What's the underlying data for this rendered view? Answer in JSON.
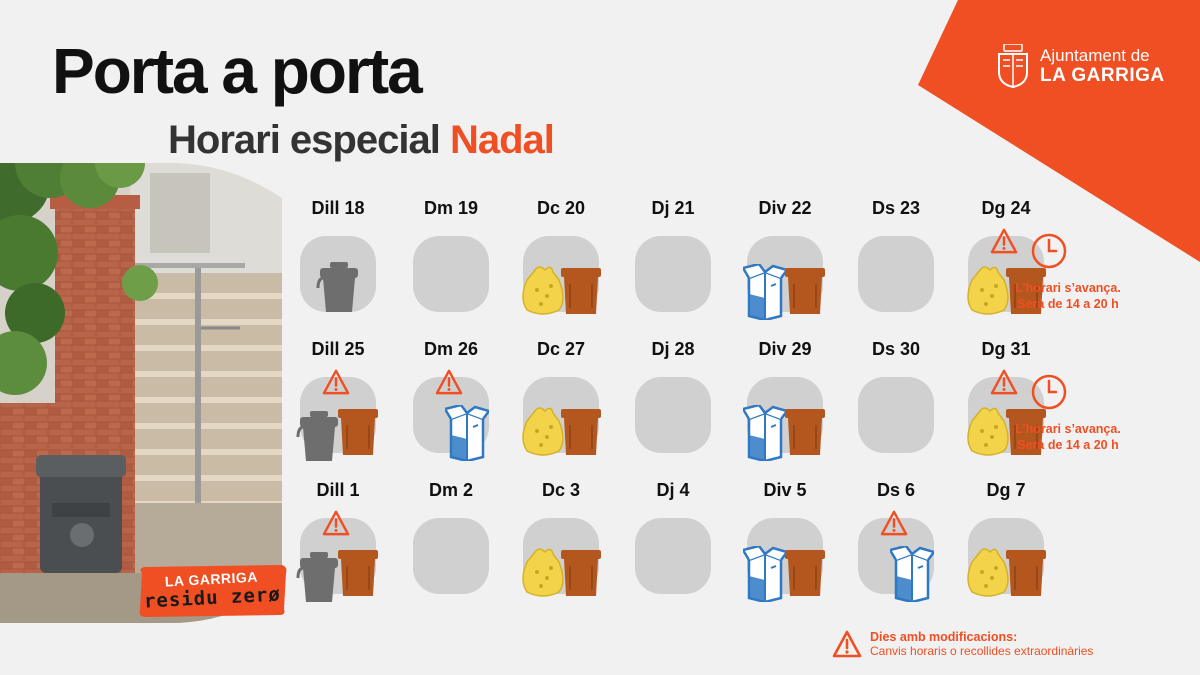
{
  "header": {
    "title": "Porta a porta",
    "subtitle_main": "Horari especial ",
    "subtitle_accent": "Nadal"
  },
  "brand": {
    "line1": "Ajuntament de",
    "line2": "LA GARRIGA"
  },
  "badge": {
    "line1": "LA GARRIGA",
    "line2": "residu zerø"
  },
  "colors": {
    "accent": "#f04e23",
    "cell": "#d0d0d0",
    "resta": "#6e6e6e",
    "organica": "#b4571f",
    "envasos": "#f2d34a",
    "paper": "#2e78c4"
  },
  "rows": [
    {
      "days": [
        {
          "label": "Dill 18",
          "items": [
            "resta"
          ],
          "warning": false
        },
        {
          "label": "Dm 19",
          "items": [],
          "warning": false
        },
        {
          "label": "Dc 20",
          "items": [
            "envasos",
            "organica"
          ],
          "warning": false
        },
        {
          "label": "Dj 21",
          "items": [],
          "warning": false
        },
        {
          "label": "Div 22",
          "items": [
            "paper",
            "organica"
          ],
          "warning": false
        },
        {
          "label": "Ds 23",
          "items": [],
          "warning": false
        },
        {
          "label": "Dg 24",
          "items": [
            "envasos",
            "organica"
          ],
          "warning": true,
          "clock": true,
          "note_line1": "L’horari s’avança.",
          "note_line2": "Serà de 14 a 20 h"
        }
      ]
    },
    {
      "days": [
        {
          "label": "Dill 25",
          "items": [
            "resta",
            "organica"
          ],
          "warning": true
        },
        {
          "label": "Dm 26",
          "items": [
            "paper"
          ],
          "warning": true
        },
        {
          "label": "Dc 27",
          "items": [
            "envasos",
            "organica"
          ],
          "warning": false
        },
        {
          "label": "Dj 28",
          "items": [],
          "warning": false
        },
        {
          "label": "Div 29",
          "items": [
            "paper",
            "organica"
          ],
          "warning": false
        },
        {
          "label": "Ds 30",
          "items": [],
          "warning": false
        },
        {
          "label": "Dg 31",
          "items": [
            "envasos",
            "organica"
          ],
          "warning": true,
          "clock": true,
          "note_line1": "L’horari s’avança.",
          "note_line2": "Serà de 14 a 20 h"
        }
      ]
    },
    {
      "days": [
        {
          "label": "Dill 1",
          "items": [
            "resta",
            "organica"
          ],
          "warning": true
        },
        {
          "label": "Dm 2",
          "items": [],
          "warning": false
        },
        {
          "label": "Dc 3",
          "items": [
            "envasos",
            "organica"
          ],
          "warning": false
        },
        {
          "label": "Dj 4",
          "items": [],
          "warning": false
        },
        {
          "label": "Div 5",
          "items": [
            "paper",
            "organica"
          ],
          "warning": false
        },
        {
          "label": "Ds 6",
          "items": [
            "paper"
          ],
          "warning": true
        },
        {
          "label": "Dg 7",
          "items": [
            "envasos",
            "organica"
          ],
          "warning": false
        }
      ]
    }
  ],
  "legend": {
    "title": "Dies amb modificacions:",
    "subtitle": "Canvis horaris o recollides extraordinàries"
  }
}
